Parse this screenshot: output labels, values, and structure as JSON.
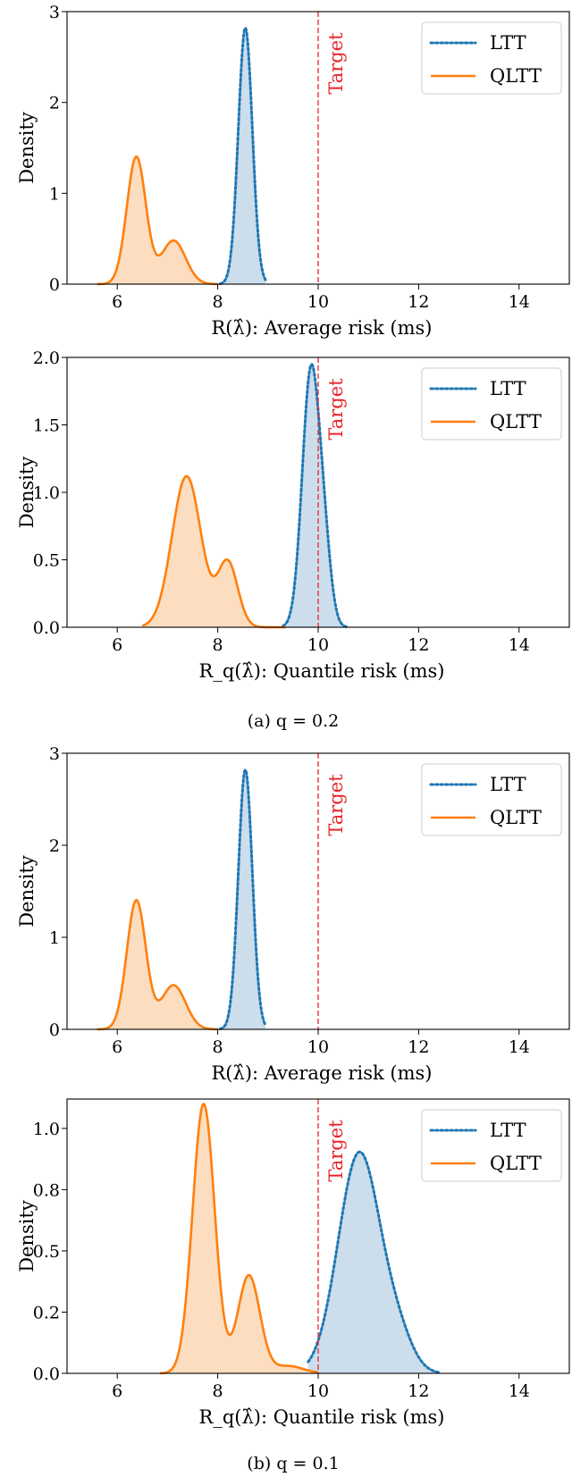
{
  "captions": [
    "(a) q = 0.2",
    "(b) q = 0.1"
  ],
  "colors": {
    "ltt": "#1f77b4",
    "ltt_fill": "#c6d9ea",
    "qltt": "#ff7f0e",
    "qltt_fill": "#fcd9b8",
    "target": "#e8242b"
  },
  "chart_data": [
    {
      "type": "area",
      "xlabel": "R(λ̂): Average risk (ms)",
      "ylabel": "Density",
      "xlim": [
        5,
        15
      ],
      "ylim": [
        0,
        3
      ],
      "xticks": [
        6,
        8,
        10,
        12,
        14
      ],
      "yticks": [
        0,
        1,
        2,
        3
      ],
      "ytick_labels": [
        "0",
        "1",
        "2",
        "3"
      ],
      "target": {
        "x": 10,
        "label": "Target"
      },
      "legend": "top-right",
      "series": [
        {
          "name": "LTT",
          "style": "dotted",
          "peaks": [
            {
              "mu": 8.55,
              "sigma": 0.14,
              "amp": 2.82
            }
          ],
          "range": [
            8.05,
            8.95
          ]
        },
        {
          "name": "QLTT",
          "style": "solid",
          "peaks": [
            {
              "mu": 6.38,
              "sigma": 0.19,
              "amp": 1.4
            },
            {
              "mu": 7.12,
              "sigma": 0.24,
              "amp": 0.48
            }
          ],
          "range": [
            5.6,
            8.0
          ]
        }
      ]
    },
    {
      "type": "area",
      "xlabel": "R_q(λ̂): Quantile risk (ms)",
      "ylabel": "Density",
      "xlim": [
        5,
        15
      ],
      "ylim": [
        0,
        2.0
      ],
      "xticks": [
        6,
        8,
        10,
        12,
        14
      ],
      "yticks": [
        0,
        0.5,
        1.0,
        1.5,
        2.0
      ],
      "ytick_labels": [
        "0.0",
        "0.5",
        "1.0",
        "1.5",
        "2.0"
      ],
      "target": {
        "x": 10,
        "label": "Target"
      },
      "legend": "top-right",
      "series": [
        {
          "name": "LTT",
          "style": "dotted",
          "peaks": [
            {
              "mu": 9.85,
              "sigma": 0.17,
              "amp": 1.86
            },
            {
              "mu": 10.12,
              "sigma": 0.14,
              "amp": 0.5
            }
          ],
          "range": [
            9.3,
            10.6
          ]
        },
        {
          "name": "QLTT",
          "style": "solid",
          "peaks": [
            {
              "mu": 7.38,
              "sigma": 0.29,
              "amp": 1.12
            },
            {
              "mu": 8.2,
              "sigma": 0.2,
              "amp": 0.48
            }
          ],
          "range": [
            6.5,
            9.35
          ]
        }
      ]
    },
    {
      "type": "area",
      "xlabel": "R(λ̂): Average risk (ms)",
      "ylabel": "Density",
      "xlim": [
        5,
        15
      ],
      "ylim": [
        0,
        3
      ],
      "xticks": [
        6,
        8,
        10,
        12,
        14
      ],
      "yticks": [
        0,
        1,
        2,
        3
      ],
      "ytick_labels": [
        "0",
        "1",
        "2",
        "3"
      ],
      "target": {
        "x": 10,
        "label": "Target"
      },
      "legend": "top-right",
      "series": [
        {
          "name": "LTT",
          "style": "dotted",
          "peaks": [
            {
              "mu": 8.55,
              "sigma": 0.14,
              "amp": 2.82
            }
          ],
          "range": [
            8.05,
            8.95
          ]
        },
        {
          "name": "QLTT",
          "style": "solid",
          "peaks": [
            {
              "mu": 6.38,
              "sigma": 0.19,
              "amp": 1.4
            },
            {
              "mu": 7.12,
              "sigma": 0.24,
              "amp": 0.48
            }
          ],
          "range": [
            5.6,
            8.0
          ]
        }
      ]
    },
    {
      "type": "area",
      "xlabel": "R_q(λ̂): Quantile risk (ms)",
      "ylabel": "Density",
      "xlim": [
        5,
        15
      ],
      "ylim": [
        0,
        1.12
      ],
      "xticks": [
        6,
        8,
        10,
        12,
        14
      ],
      "yticks": [
        0,
        0.25,
        0.5,
        0.75,
        1.0
      ],
      "ytick_labels": [
        "0.0",
        "0.2",
        "0.5",
        "0.8",
        "1.0"
      ],
      "target": {
        "x": 10,
        "label": "Target"
      },
      "legend": "top-right",
      "series": [
        {
          "name": "LTT",
          "style": "dotted",
          "peaks": [
            {
              "mu": 10.82,
              "sigma": 0.42,
              "amp": 0.9
            },
            {
              "mu": 11.6,
              "sigma": 0.3,
              "amp": 0.12
            }
          ],
          "range": [
            9.8,
            12.4
          ]
        },
        {
          "name": "QLTT",
          "style": "solid",
          "peaks": [
            {
              "mu": 7.72,
              "sigma": 0.22,
              "amp": 1.1
            },
            {
              "mu": 8.62,
              "sigma": 0.22,
              "amp": 0.4
            },
            {
              "mu": 9.4,
              "sigma": 0.3,
              "amp": 0.03
            }
          ],
          "range": [
            6.85,
            10.0
          ]
        }
      ]
    }
  ]
}
